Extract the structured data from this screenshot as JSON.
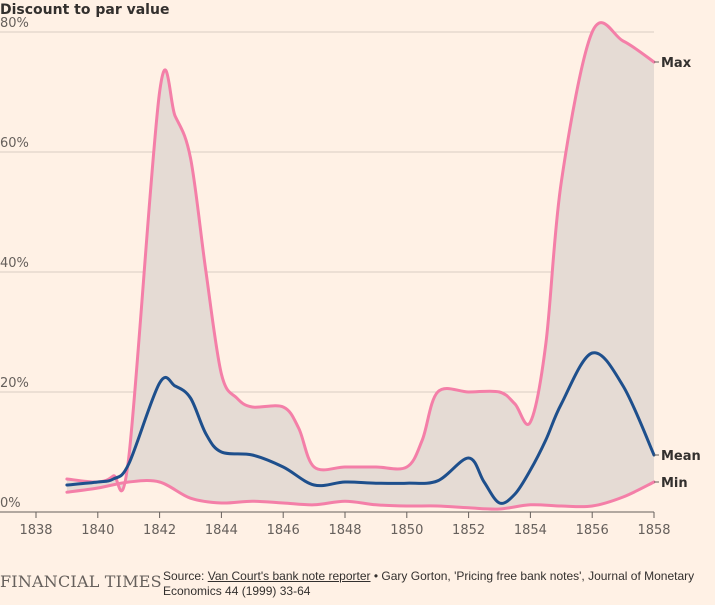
{
  "chart_data": {
    "type": "area",
    "ylabel": "Discount to par value",
    "xlim": [
      1838,
      1858
    ],
    "ylim": [
      0,
      80
    ],
    "x_ticks": [
      "1838",
      "1840",
      "1842",
      "1844",
      "1846",
      "1848",
      "1850",
      "1852",
      "1854",
      "1856",
      "1858"
    ],
    "y_ticks": [
      {
        "value": 0,
        "label": "0%"
      },
      {
        "value": 20,
        "label": "20%"
      },
      {
        "value": 40,
        "label": "40%"
      },
      {
        "value": 60,
        "label": "60%"
      },
      {
        "value": 80,
        "label": "80%"
      }
    ],
    "grid": true,
    "shaded_range": "between Min and Max",
    "series": [
      {
        "name": "Max",
        "color": "#f47fa8",
        "x": [
          1839,
          1840,
          1840.5,
          1841,
          1842,
          1842.5,
          1843,
          1843.5,
          1844,
          1844.5,
          1845,
          1846,
          1846.5,
          1847,
          1848,
          1849,
          1850,
          1850.5,
          1851,
          1852,
          1853,
          1853.5,
          1854,
          1854.5,
          1855,
          1856,
          1857,
          1858
        ],
        "y": [
          5.5,
          5,
          6,
          9,
          70,
          66,
          59,
          40,
          23,
          19,
          17.5,
          17.5,
          14,
          7.5,
          7.5,
          7.5,
          7.5,
          12,
          20,
          20,
          20,
          18,
          15,
          28,
          55,
          80,
          78.5,
          75
        ]
      },
      {
        "name": "Mean",
        "color": "#1e4f8c",
        "x": [
          1839,
          1840,
          1840.5,
          1841,
          1842,
          1842.5,
          1843,
          1843.5,
          1844,
          1845,
          1846,
          1847,
          1848,
          1849,
          1850,
          1851,
          1852,
          1852.5,
          1853,
          1853.5,
          1854,
          1854.5,
          1855,
          1856,
          1857,
          1858
        ],
        "y": [
          4.5,
          5,
          5.5,
          8,
          21.5,
          21,
          19,
          13,
          10,
          9.5,
          7.5,
          4.5,
          5,
          4.8,
          4.8,
          5.2,
          9,
          5,
          1.5,
          3,
          7,
          12,
          18,
          26.5,
          21,
          9.5
        ]
      },
      {
        "name": "Min",
        "color": "#f47fa8",
        "x": [
          1839,
          1840,
          1841,
          1842,
          1843,
          1844,
          1845,
          1846,
          1847,
          1848,
          1849,
          1850,
          1851,
          1852,
          1853,
          1854,
          1855,
          1856,
          1857,
          1858
        ],
        "y": [
          3.3,
          4,
          5,
          5,
          2.3,
          1.5,
          1.8,
          1.5,
          1.2,
          1.8,
          1.2,
          1.0,
          1.0,
          0.7,
          0.5,
          1.2,
          1.0,
          1.0,
          2.5,
          5
        ]
      }
    ]
  },
  "colors": {
    "background": "#fff1e5",
    "range_fill": "#e5dbd4",
    "grid": "#d9cdc3",
    "axis": "#66605c"
  },
  "footer": {
    "brand": "FINANCIAL TIMES",
    "source_prefix": "Source: ",
    "source_link": "Van Court's bank note reporter",
    "source_rest": " • Gary Gorton, 'Pricing free bank notes', Journal of Monetary Economics 44 (1999) 33-64"
  }
}
